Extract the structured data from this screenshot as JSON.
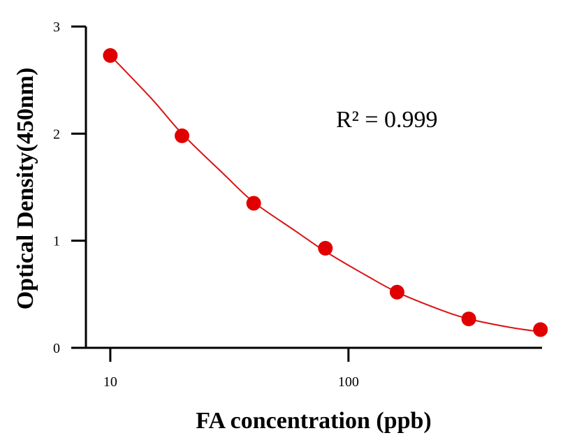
{
  "chart_data": {
    "type": "scatter",
    "xscale": "log",
    "xlabel": "FA concentration (ppb)",
    "ylabel": "Optical Density(450nm)",
    "xlim": [
      7.9,
      650
    ],
    "ylim": [
      0,
      3
    ],
    "xticks": [
      10,
      100
    ],
    "yticks": [
      0,
      1,
      2,
      3
    ],
    "grid": false,
    "legend": "none",
    "color": "#e00000",
    "line_color": "#d81414",
    "series": [
      {
        "x": [
          10,
          20,
          40,
          80,
          160,
          320,
          640
        ],
        "y": [
          2.73,
          1.98,
          1.35,
          0.93,
          0.52,
          0.27,
          0.17
        ]
      }
    ],
    "fit_curve": {
      "x": [
        10,
        15,
        20,
        30,
        40,
        60,
        80,
        120,
        160,
        240,
        320,
        480,
        640
      ],
      "y": [
        2.73,
        2.32,
        2.0,
        1.62,
        1.36,
        1.09,
        0.9,
        0.67,
        0.52,
        0.36,
        0.27,
        0.19,
        0.15
      ]
    },
    "annotations": [
      {
        "text": "R² = 0.999"
      }
    ]
  }
}
